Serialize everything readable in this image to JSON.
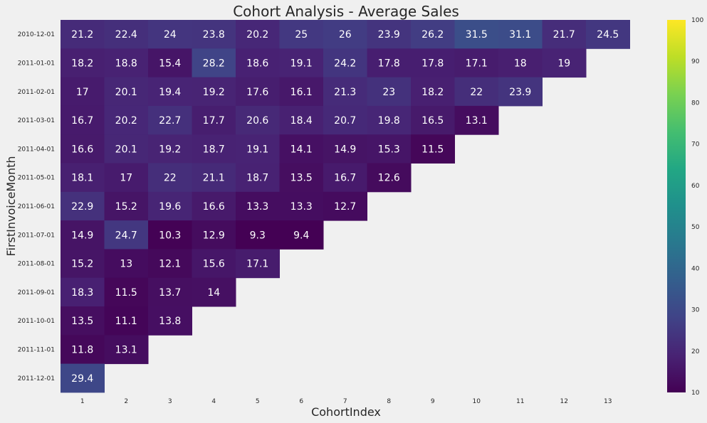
{
  "chart_data": {
    "type": "heatmap",
    "title": "Cohort Analysis - Average Sales",
    "xlabel": "CohortIndex",
    "ylabel": "FirstInvoiceMonth",
    "x_ticks": [
      1,
      2,
      3,
      4,
      5,
      6,
      7,
      8,
      9,
      10,
      11,
      12,
      13
    ],
    "y_ticks": [
      "2010-12-01",
      "2011-01-01",
      "2011-02-01",
      "2011-03-01",
      "2011-04-01",
      "2011-05-01",
      "2011-06-01",
      "2011-07-01",
      "2011-08-01",
      "2011-09-01",
      "2011-10-01",
      "2011-11-01",
      "2011-12-01"
    ],
    "values": [
      [
        21.2,
        22.4,
        24,
        23.8,
        20.2,
        25,
        26,
        23.9,
        26.2,
        31.5,
        31.1,
        21.7,
        24.5
      ],
      [
        18.2,
        18.8,
        15.4,
        28.2,
        18.6,
        19.1,
        24.2,
        17.8,
        17.8,
        17.1,
        18,
        19
      ],
      [
        17,
        20.1,
        19.4,
        19.2,
        17.6,
        16.1,
        21.3,
        23,
        18.2,
        22,
        23.9
      ],
      [
        16.7,
        20.2,
        22.7,
        17.7,
        20.6,
        18.4,
        20.7,
        19.8,
        16.5,
        13.1
      ],
      [
        16.6,
        20.1,
        19.2,
        18.7,
        19.1,
        14.1,
        14.9,
        15.3,
        11.5
      ],
      [
        18.1,
        17,
        22,
        21.1,
        18.7,
        13.5,
        16.7,
        12.6
      ],
      [
        22.9,
        15.2,
        19.6,
        16.6,
        13.3,
        13.3,
        12.7
      ],
      [
        14.9,
        24.7,
        10.3,
        12.9,
        9.3,
        9.4
      ],
      [
        15.2,
        13,
        12.1,
        15.6,
        17.1
      ],
      [
        18.3,
        11.5,
        13.7,
        14
      ],
      [
        13.5,
        11.1,
        13.8
      ],
      [
        11.8,
        13.1
      ],
      [
        29.4
      ]
    ],
    "colorscale": "viridis",
    "vmin": 10,
    "vmax": 100,
    "colorbar_ticks": [
      10,
      20,
      30,
      40,
      50,
      60,
      70,
      80,
      90,
      100
    ]
  }
}
